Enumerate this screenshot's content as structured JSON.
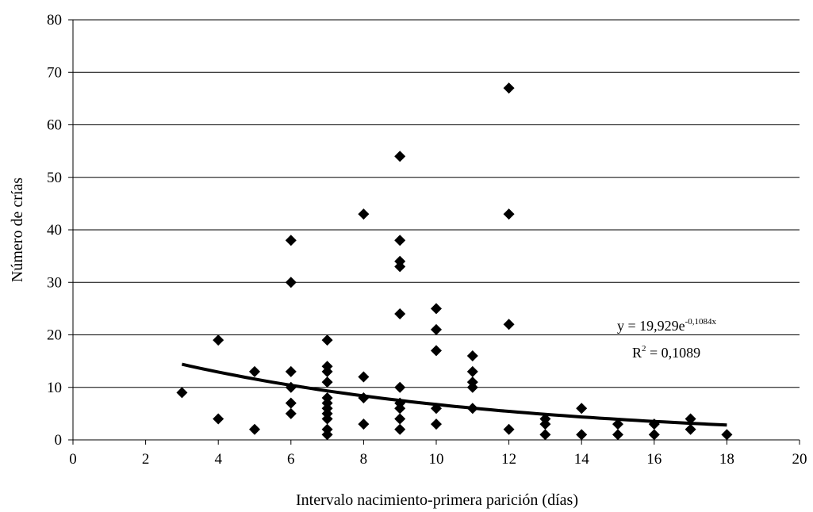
{
  "chart_data": {
    "type": "scatter",
    "xlabel": "Intervalo nacimiento-primera parición (días)",
    "ylabel": "Número de crías",
    "xlim": [
      0,
      20
    ],
    "ylim": [
      0,
      80
    ],
    "xticks": [
      "0",
      "2",
      "4",
      "6",
      "8",
      "10",
      "12",
      "14",
      "16",
      "18",
      "20"
    ],
    "yticks": [
      "0",
      "10",
      "20",
      "30",
      "40",
      "50",
      "60",
      "70",
      "80"
    ],
    "grid": "horizontal",
    "marker": "diamond",
    "series": [
      {
        "points": [
          [
            3,
            9
          ],
          [
            4,
            19
          ],
          [
            4,
            4
          ],
          [
            5,
            13
          ],
          [
            5,
            2
          ],
          [
            6,
            38
          ],
          [
            6,
            30
          ],
          [
            6,
            13
          ],
          [
            6,
            10
          ],
          [
            6,
            7
          ],
          [
            6,
            5
          ],
          [
            7,
            19
          ],
          [
            7,
            14
          ],
          [
            7,
            13
          ],
          [
            7,
            11
          ],
          [
            7,
            8
          ],
          [
            7,
            7
          ],
          [
            7,
            6
          ],
          [
            7,
            5
          ],
          [
            7,
            4
          ],
          [
            7,
            2
          ],
          [
            7,
            1
          ],
          [
            8,
            43
          ],
          [
            8,
            12
          ],
          [
            8,
            8
          ],
          [
            8,
            3
          ],
          [
            9,
            54
          ],
          [
            9,
            38
          ],
          [
            9,
            34
          ],
          [
            9,
            33
          ],
          [
            9,
            24
          ],
          [
            9,
            10
          ],
          [
            9,
            7
          ],
          [
            9,
            6
          ],
          [
            9,
            4
          ],
          [
            9,
            2
          ],
          [
            10,
            25
          ],
          [
            10,
            21
          ],
          [
            10,
            17
          ],
          [
            10,
            6
          ],
          [
            10,
            3
          ],
          [
            11,
            16
          ],
          [
            11,
            13
          ],
          [
            11,
            11
          ],
          [
            11,
            10
          ],
          [
            11,
            6
          ],
          [
            12,
            67
          ],
          [
            12,
            43
          ],
          [
            12,
            22
          ],
          [
            12,
            2
          ],
          [
            13,
            4
          ],
          [
            13,
            3
          ],
          [
            13,
            1
          ],
          [
            14,
            6
          ],
          [
            14,
            1
          ],
          [
            15,
            3
          ],
          [
            15,
            1
          ],
          [
            16,
            3
          ],
          [
            16,
            1
          ],
          [
            17,
            4
          ],
          [
            17,
            2
          ],
          [
            18,
            1
          ]
        ]
      }
    ],
    "trendline": {
      "type": "exponential",
      "a": 19.929,
      "b": -0.1084,
      "x_range": [
        3,
        18
      ],
      "equation_main": "y = 19,929e",
      "equation_exp": "-0,1084x",
      "r2_main": "R",
      "r2_sup": "2",
      "r2_value": " = 0,1089"
    }
  }
}
